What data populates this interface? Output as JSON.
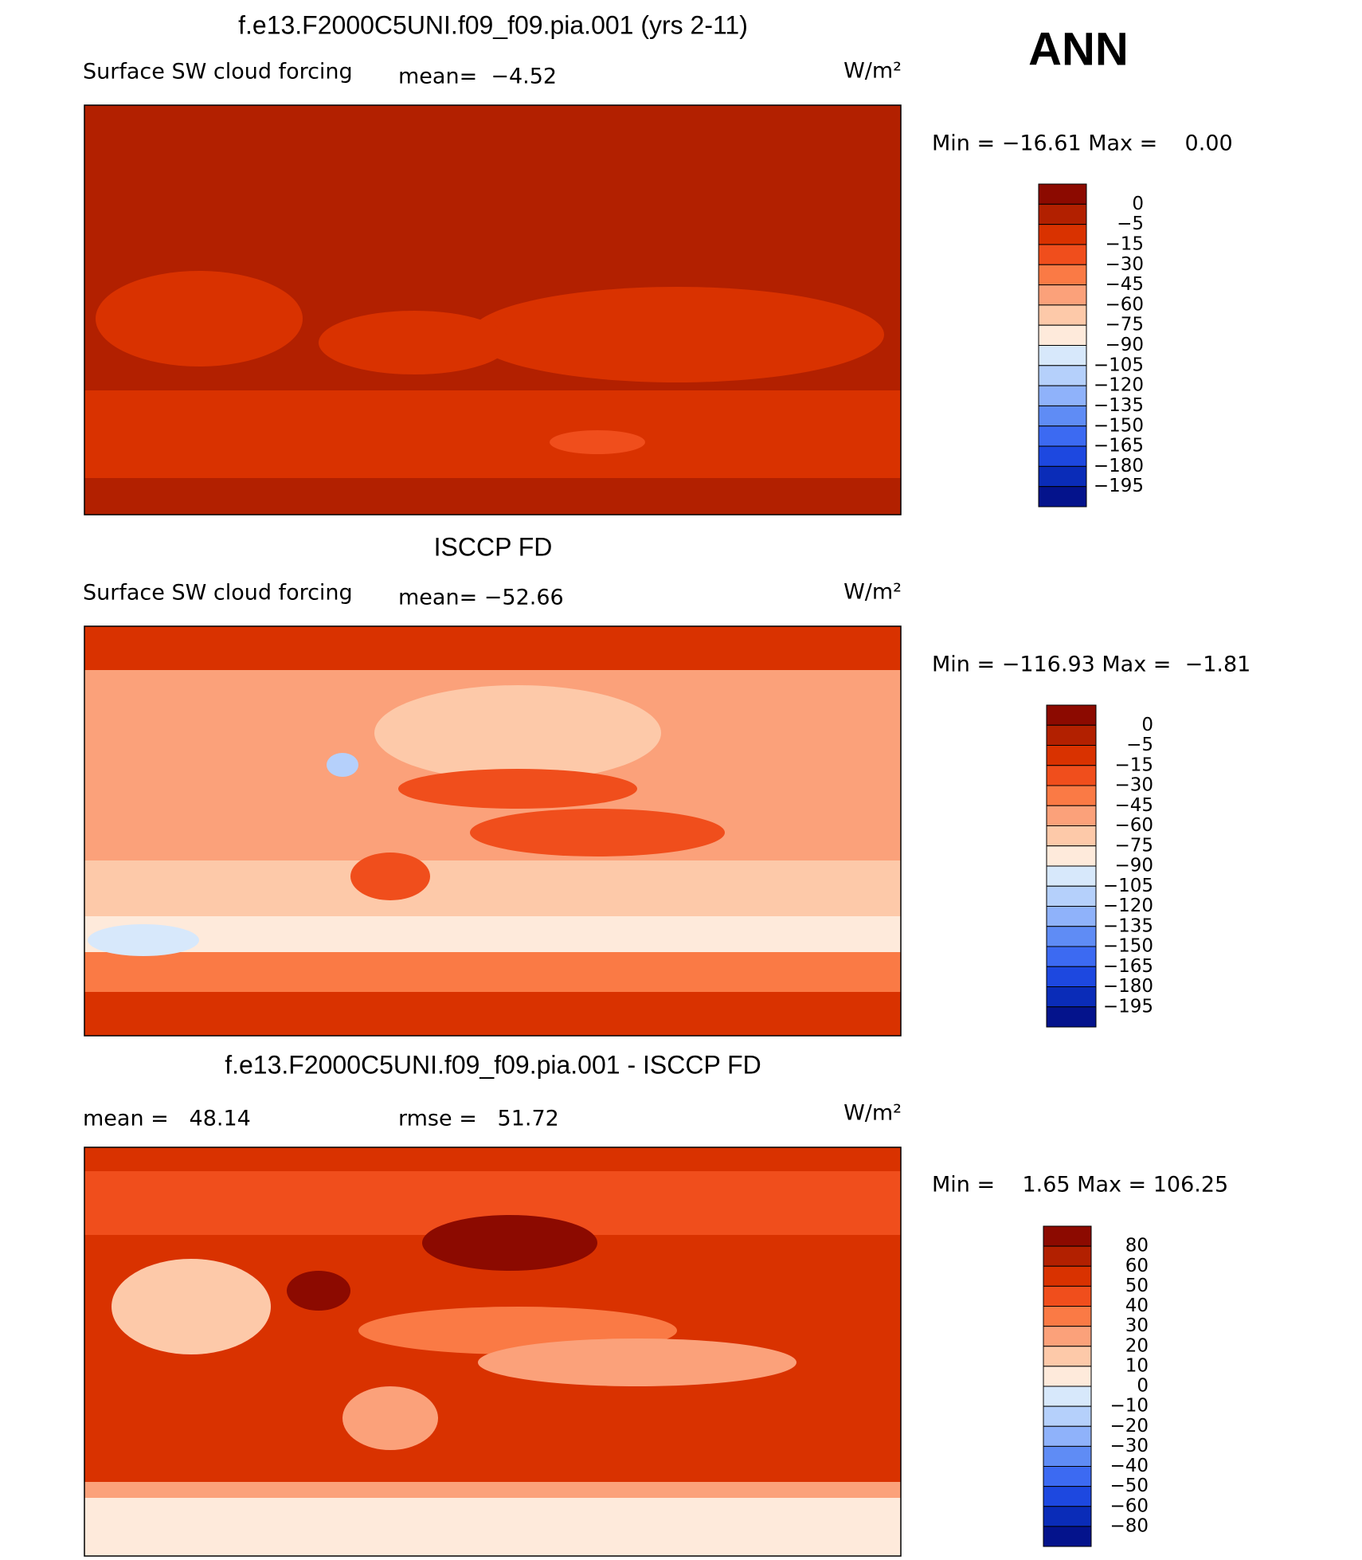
{
  "season": "ANN",
  "panels": [
    {
      "title": "f.e13.F2000C5UNI.f09_f09.pia.001 (yrs 2-11)",
      "variable": "Surface SW cloud forcing",
      "stat1": "mean=  −4.52",
      "units": "W/m²",
      "range": "Min = −16.61 Max =    0.00",
      "levels": [
        "0",
        "−5",
        "−15",
        "−30",
        "−45",
        "−60",
        "−75",
        "−90",
        "−105",
        "−120",
        "−135",
        "−150",
        "−165",
        "−180",
        "−195"
      ],
      "colors": [
        "#8c0a00",
        "#b22000",
        "#d93200",
        "#f04e1c",
        "#fa7a45",
        "#fba17a",
        "#fdc9a9",
        "#feeadb",
        "#d7e8fb",
        "#b5d0fb",
        "#8fb2fa",
        "#5f8cf5",
        "#3c6af2",
        "#1d48e0",
        "#0a2cb8",
        "#04138c"
      ]
    },
    {
      "title": "ISCCP FD",
      "variable": "Surface SW cloud forcing",
      "stat1": "mean= −52.66",
      "units": "W/m²",
      "range": "Min = −116.93 Max =  −1.81",
      "levels": [
        "0",
        "−5",
        "−15",
        "−30",
        "−45",
        "−60",
        "−75",
        "−90",
        "−105",
        "−120",
        "−135",
        "−150",
        "−165",
        "−180",
        "−195"
      ],
      "colors": [
        "#8c0a00",
        "#b22000",
        "#d93200",
        "#f04e1c",
        "#fa7a45",
        "#fba17a",
        "#fdc9a9",
        "#feeadb",
        "#d7e8fb",
        "#b5d0fb",
        "#8fb2fa",
        "#5f8cf5",
        "#3c6af2",
        "#1d48e0",
        "#0a2cb8",
        "#04138c"
      ]
    },
    {
      "title": "f.e13.F2000C5UNI.f09_f09.pia.001 - ISCCP FD",
      "stat1": "mean =   48.14",
      "stat2": "rmse =   51.72",
      "units": "W/m²",
      "range": "Min =    1.65 Max = 106.25",
      "levels": [
        "80",
        "60",
        "50",
        "40",
        "30",
        "20",
        "10",
        "0",
        "−10",
        "−20",
        "−30",
        "−40",
        "−50",
        "−60",
        "−80"
      ],
      "colors": [
        "#8c0a00",
        "#b22000",
        "#d93200",
        "#f04e1c",
        "#fa7a45",
        "#fba17a",
        "#fdc9a9",
        "#feeadb",
        "#d7e8fb",
        "#b5d0fb",
        "#8fb2fa",
        "#5f8cf5",
        "#3c6af2",
        "#1d48e0",
        "#0a2cb8",
        "#04138c"
      ]
    }
  ]
}
